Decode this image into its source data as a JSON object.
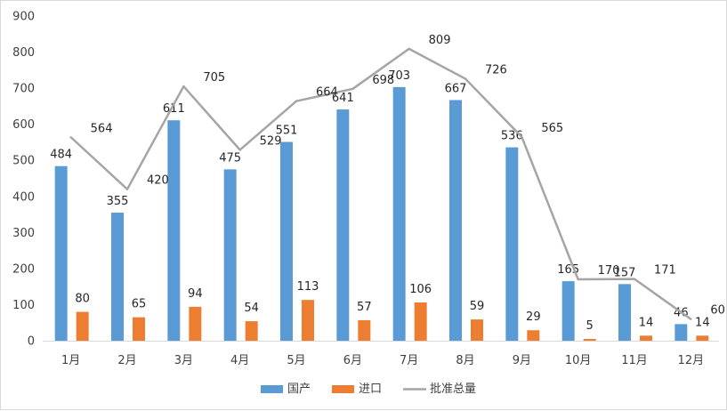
{
  "chart_data": {
    "type": "bar",
    "categories": [
      "1月",
      "2月",
      "3月",
      "4月",
      "5月",
      "6月",
      "7月",
      "8月",
      "9月",
      "10月",
      "11月",
      "12月"
    ],
    "ylim": [
      0,
      900
    ],
    "yticks": [
      0,
      100,
      200,
      300,
      400,
      500,
      600,
      700,
      800,
      900
    ],
    "grid": false,
    "legend_position": "bottom",
    "series": [
      {
        "name": "国产",
        "kind": "bar",
        "color": "#5b9bd5",
        "values": [
          484,
          355,
          611,
          475,
          551,
          641,
          703,
          667,
          536,
          165,
          157,
          46
        ]
      },
      {
        "name": "进口",
        "kind": "bar",
        "color": "#ed7d31",
        "values": [
          80,
          65,
          94,
          54,
          113,
          57,
          106,
          59,
          29,
          5,
          14,
          14
        ]
      },
      {
        "name": "批准总量",
        "kind": "line",
        "color": "#a5a5a5",
        "values": [
          564,
          420,
          705,
          529,
          664,
          698,
          809,
          726,
          565,
          170,
          171,
          60
        ]
      }
    ]
  }
}
